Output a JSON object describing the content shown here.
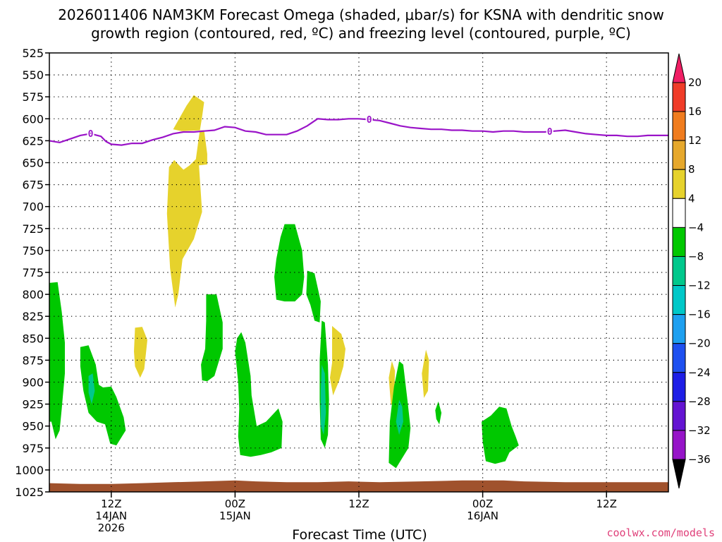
{
  "chart_data": {
    "type": "heatmap",
    "title_line1": "2026011406 NAM3KM Forecast Omega (shaded, μbar/s) for KSNA with dendritic snow",
    "title_line2": "growth region (contoured, red, ºC) and freezing level (contoured, purple, ºC)",
    "xlabel": "Forecast Time (UTC)",
    "ylabel": "",
    "credit": "coolwx.com/models",
    "x_range_hours": [
      0,
      60
    ],
    "y_range_mb": [
      525,
      1025
    ],
    "y_ticks": [
      "525",
      "550",
      "575",
      "600",
      "625",
      "650",
      "675",
      "700",
      "725",
      "750",
      "775",
      "800",
      "825",
      "850",
      "875",
      "900",
      "925",
      "950",
      "975",
      "1000",
      "1025"
    ],
    "x_ticks": [
      {
        "hour": 6,
        "label": "12Z",
        "date": "14JAN",
        "year": "2026"
      },
      {
        "hour": 18,
        "label": "00Z",
        "date": "15JAN",
        "year": ""
      },
      {
        "hour": 30,
        "label": "12Z",
        "date": "",
        "year": ""
      },
      {
        "hour": 42,
        "label": "00Z",
        "date": "16JAN",
        "year": ""
      },
      {
        "hour": 54,
        "label": "12Z",
        "date": "",
        "year": ""
      }
    ],
    "colorbar": {
      "levels": [
        20,
        16,
        12,
        8,
        4,
        -4,
        -8,
        -12,
        -16,
        -20,
        -24,
        -28,
        -32,
        -36
      ],
      "colors": [
        "#f01e64",
        "#f03c28",
        "#f07c1e",
        "#e6a82c",
        "#e6d22c",
        "#ffffff",
        "#00c800",
        "#00c88c",
        "#00c8c8",
        "#1ea0f0",
        "#1e50f0",
        "#1e1ee6",
        "#6414d2",
        "#9614c8",
        "#a0a0a0",
        "#000000"
      ]
    },
    "freezing_level": {
      "label": "0",
      "color": "#9a14c8",
      "label_hours": [
        4,
        31,
        48.5
      ],
      "points": [
        [
          0,
          625
        ],
        [
          1,
          627
        ],
        [
          2,
          623
        ],
        [
          3,
          619
        ],
        [
          4,
          617
        ],
        [
          5,
          620
        ],
        [
          5.5,
          626
        ],
        [
          6,
          629
        ],
        [
          7,
          630
        ],
        [
          8,
          628
        ],
        [
          9,
          628
        ],
        [
          10,
          624
        ],
        [
          11,
          621
        ],
        [
          12,
          617
        ],
        [
          13,
          615
        ],
        [
          14,
          615
        ],
        [
          15,
          614
        ],
        [
          16,
          613
        ],
        [
          17,
          609
        ],
        [
          18,
          610
        ],
        [
          19,
          614
        ],
        [
          20,
          615
        ],
        [
          21,
          618
        ],
        [
          22,
          618
        ],
        [
          23,
          618
        ],
        [
          24,
          614
        ],
        [
          25,
          608
        ],
        [
          26,
          600
        ],
        [
          27,
          601
        ],
        [
          28,
          601
        ],
        [
          29,
          600
        ],
        [
          30,
          600
        ],
        [
          31,
          601
        ],
        [
          32,
          602
        ],
        [
          33,
          605
        ],
        [
          34,
          608
        ],
        [
          35,
          610
        ],
        [
          36,
          611
        ],
        [
          37,
          612
        ],
        [
          38,
          612
        ],
        [
          39,
          613
        ],
        [
          40,
          613
        ],
        [
          41,
          614
        ],
        [
          42,
          614
        ],
        [
          43,
          615
        ],
        [
          44,
          614
        ],
        [
          45,
          614
        ],
        [
          46,
          615
        ],
        [
          47,
          615
        ],
        [
          48,
          615
        ],
        [
          49,
          614
        ],
        [
          50,
          613
        ],
        [
          51,
          615
        ],
        [
          52,
          617
        ],
        [
          53,
          618
        ],
        [
          54,
          619
        ],
        [
          55,
          619
        ],
        [
          56,
          620
        ],
        [
          57,
          620
        ],
        [
          58,
          619
        ],
        [
          59,
          619
        ],
        [
          60,
          619
        ]
      ]
    },
    "terrain": {
      "color": "#a0522d",
      "points": [
        [
          0,
          1015
        ],
        [
          3,
          1016
        ],
        [
          6,
          1016
        ],
        [
          9,
          1015
        ],
        [
          12,
          1014
        ],
        [
          15,
          1013
        ],
        [
          18,
          1012
        ],
        [
          20,
          1013
        ],
        [
          23,
          1014
        ],
        [
          26,
          1014
        ],
        [
          29,
          1013
        ],
        [
          32,
          1014
        ],
        [
          36,
          1013
        ],
        [
          40,
          1012
        ],
        [
          44,
          1012
        ],
        [
          46,
          1013
        ],
        [
          50,
          1014
        ],
        [
          60,
          1014
        ]
      ]
    },
    "omega_regions": [
      {
        "value": 6,
        "points": [
          [
            12.0,
            612
          ],
          [
            12.8,
            614
          ],
          [
            15.0,
            613
          ],
          [
            15.3,
            640
          ],
          [
            15.3,
            652
          ],
          [
            14.5,
            653
          ],
          [
            14.8,
            706
          ],
          [
            14.0,
            737
          ],
          [
            12.9,
            760
          ],
          [
            12.5,
            800
          ],
          [
            12.2,
            815
          ],
          [
            11.7,
            770
          ],
          [
            11.4,
            708
          ],
          [
            11.6,
            655
          ],
          [
            12.1,
            647
          ],
          [
            12.5,
            652
          ],
          [
            13.0,
            658
          ],
          [
            13.6,
            653
          ],
          [
            14.2,
            646
          ],
          [
            14.5,
            620
          ],
          [
            14.8,
            598
          ],
          [
            15.0,
            581
          ],
          [
            14.0,
            573
          ],
          [
            13.3,
            585
          ]
        ]
      },
      {
        "value": 6,
        "points": [
          [
            8.3,
            838
          ],
          [
            9.0,
            837
          ],
          [
            9.5,
            852
          ],
          [
            9.2,
            885
          ],
          [
            8.8,
            895
          ],
          [
            8.3,
            882
          ],
          [
            8.2,
            865
          ]
        ]
      },
      {
        "value": 6,
        "points": [
          [
            27.4,
            836
          ],
          [
            28.3,
            845
          ],
          [
            28.7,
            862
          ],
          [
            28.5,
            882
          ],
          [
            28.1,
            898
          ],
          [
            27.5,
            915
          ],
          [
            27.2,
            895
          ],
          [
            27.4,
            878
          ]
        ]
      },
      {
        "value": 6,
        "points": [
          [
            33.2,
            876
          ],
          [
            33.5,
            887
          ],
          [
            33.4,
            928
          ],
          [
            33.1,
            925
          ],
          [
            32.9,
            895
          ]
        ]
      },
      {
        "value": 6,
        "points": [
          [
            36.5,
            863
          ],
          [
            36.8,
            875
          ],
          [
            36.7,
            910
          ],
          [
            36.3,
            918
          ],
          [
            36.1,
            890
          ]
        ]
      },
      {
        "value": -6,
        "points": [
          [
            0,
            787
          ],
          [
            0.8,
            786
          ],
          [
            1.2,
            820
          ],
          [
            1.5,
            855
          ],
          [
            1.5,
            890
          ],
          [
            1.2,
            930
          ],
          [
            1.0,
            955
          ],
          [
            0.6,
            965
          ],
          [
            0.2,
            945
          ],
          [
            0,
            945
          ]
        ]
      },
      {
        "value": -6,
        "points": [
          [
            3.0,
            860
          ],
          [
            3.8,
            858
          ],
          [
            4.5,
            880
          ],
          [
            4.8,
            903
          ],
          [
            5.2,
            906
          ],
          [
            6.0,
            905
          ],
          [
            6.5,
            917
          ],
          [
            7.2,
            940
          ],
          [
            7.4,
            955
          ],
          [
            6.5,
            972
          ],
          [
            5.9,
            970
          ],
          [
            5.4,
            948
          ],
          [
            4.6,
            945
          ],
          [
            3.8,
            935
          ],
          [
            3.3,
            910
          ],
          [
            3.0,
            882
          ]
        ]
      },
      {
        "value": -6,
        "points": [
          [
            15.2,
            800
          ],
          [
            16.2,
            800
          ],
          [
            16.8,
            832
          ],
          [
            16.8,
            862
          ],
          [
            16.0,
            893
          ],
          [
            15.3,
            899
          ],
          [
            14.8,
            898
          ],
          [
            14.7,
            880
          ],
          [
            15.1,
            862
          ],
          [
            15.2,
            830
          ]
        ]
      },
      {
        "value": -6,
        "points": [
          [
            18.6,
            843
          ],
          [
            19.0,
            855
          ],
          [
            19.5,
            893
          ],
          [
            19.6,
            915
          ],
          [
            20.1,
            950
          ],
          [
            21.0,
            945
          ],
          [
            22.2,
            930
          ],
          [
            22.6,
            945
          ],
          [
            22.5,
            975
          ],
          [
            21.5,
            980
          ],
          [
            20.5,
            983
          ],
          [
            19.5,
            985
          ],
          [
            18.5,
            983
          ],
          [
            18.3,
            962
          ],
          [
            18.4,
            930
          ],
          [
            18.3,
            900
          ],
          [
            18.0,
            865
          ],
          [
            18.2,
            850
          ]
        ]
      },
      {
        "value": -6,
        "points": [
          [
            22.8,
            720
          ],
          [
            23.8,
            720
          ],
          [
            24.5,
            750
          ],
          [
            24.7,
            780
          ],
          [
            24.5,
            800
          ],
          [
            23.8,
            808
          ],
          [
            22.8,
            808
          ],
          [
            22.0,
            806
          ],
          [
            21.8,
            780
          ],
          [
            22.0,
            760
          ],
          [
            22.4,
            735
          ]
        ]
      },
      {
        "value": -6,
        "points": [
          [
            25.0,
            773
          ],
          [
            25.7,
            776
          ],
          [
            26.3,
            808
          ],
          [
            26.2,
            832
          ],
          [
            25.7,
            830
          ],
          [
            25.3,
            812
          ],
          [
            24.9,
            800
          ]
        ]
      },
      {
        "value": -6,
        "points": [
          [
            26.4,
            830
          ],
          [
            26.7,
            832
          ],
          [
            27.0,
            880
          ],
          [
            27.1,
            920
          ],
          [
            27.0,
            960
          ],
          [
            26.7,
            975
          ],
          [
            26.3,
            965
          ],
          [
            26.2,
            920
          ],
          [
            26.2,
            875
          ]
        ]
      },
      {
        "value": -6,
        "points": [
          [
            33.9,
            876
          ],
          [
            34.3,
            880
          ],
          [
            34.7,
            920
          ],
          [
            35.0,
            952
          ],
          [
            34.8,
            975
          ],
          [
            33.6,
            998
          ],
          [
            32.9,
            992
          ],
          [
            33.0,
            945
          ],
          [
            33.4,
            905
          ]
        ]
      },
      {
        "value": -6,
        "points": [
          [
            37.7,
            922
          ],
          [
            38.0,
            935
          ],
          [
            37.8,
            948
          ],
          [
            37.5,
            942
          ],
          [
            37.4,
            932
          ]
        ]
      },
      {
        "value": -6,
        "points": [
          [
            43.6,
            928
          ],
          [
            44.3,
            930
          ],
          [
            44.8,
            950
          ],
          [
            45.2,
            962
          ],
          [
            45.5,
            972
          ],
          [
            44.6,
            980
          ],
          [
            44.2,
            990
          ],
          [
            43.2,
            993
          ],
          [
            42.3,
            990
          ],
          [
            42.0,
            968
          ],
          [
            41.9,
            945
          ],
          [
            42.8,
            938
          ]
        ]
      },
      {
        "value": -10,
        "points": [
          [
            3.8,
            893
          ],
          [
            4.2,
            890
          ],
          [
            4.4,
            910
          ],
          [
            4.1,
            925
          ],
          [
            3.8,
            912
          ]
        ]
      },
      {
        "value": -10,
        "points": [
          [
            26.4,
            880
          ],
          [
            26.7,
            890
          ],
          [
            26.8,
            935
          ],
          [
            26.6,
            960
          ],
          [
            26.3,
            950
          ],
          [
            26.3,
            910
          ]
        ]
      },
      {
        "value": -10,
        "points": [
          [
            33.9,
            920
          ],
          [
            34.2,
            928
          ],
          [
            34.3,
            945
          ],
          [
            33.9,
            960
          ],
          [
            33.6,
            945
          ]
        ]
      }
    ]
  }
}
